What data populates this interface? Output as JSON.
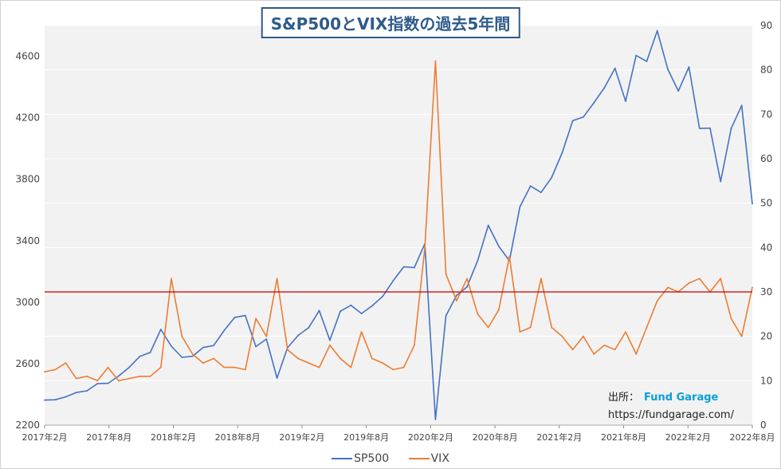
{
  "title": "S&P500とVIX指数の過去5年間",
  "source": {
    "label": "出所：",
    "name": "Fund Garage",
    "url": "https://fundgarage.com/"
  },
  "colors": {
    "sp500": "#4472c4",
    "vix": "#ed7d31",
    "threshold": "#c00000",
    "plot_bg": "#f2f2f2",
    "grid": "#ffffff"
  },
  "chart_data": {
    "type": "line",
    "title": "S&P500とVIX指数の過去5年間",
    "x_tick_labels": [
      "2017年2月",
      "2017年8月",
      "2018年2月",
      "2018年8月",
      "2019年2月",
      "2019年8月",
      "2020年2月",
      "2020年8月",
      "2021年2月",
      "2021年8月",
      "2022年2月",
      "2022年8月"
    ],
    "x_range": [
      "2017-02",
      "2022-09"
    ],
    "y_left": {
      "ticks": [
        2200,
        2600,
        3000,
        3400,
        3800,
        4200,
        4600
      ],
      "range": [
        2200,
        4800
      ]
    },
    "y_right": {
      "ticks": [
        0,
        10,
        20,
        30,
        40,
        50,
        60,
        70,
        80,
        90
      ],
      "range": [
        0,
        90
      ]
    },
    "grid": true,
    "legend": "bottom",
    "threshold_line": {
      "axis": "right",
      "value": 30
    },
    "series": [
      {
        "name": "SP500",
        "axis": "left",
        "points": [
          [
            "2017-02",
            2363
          ],
          [
            "2017-03",
            2365
          ],
          [
            "2017-04",
            2384
          ],
          [
            "2017-05",
            2412
          ],
          [
            "2017-06",
            2423
          ],
          [
            "2017-07",
            2470
          ],
          [
            "2017-08",
            2472
          ],
          [
            "2017-09",
            2519
          ],
          [
            "2017-10",
            2575
          ],
          [
            "2017-11",
            2647
          ],
          [
            "2017-12",
            2673
          ],
          [
            "2018-01",
            2823
          ],
          [
            "2018-02",
            2714
          ],
          [
            "2018-03",
            2641
          ],
          [
            "2018-04",
            2648
          ],
          [
            "2018-05",
            2705
          ],
          [
            "2018-06",
            2718
          ],
          [
            "2018-07",
            2816
          ],
          [
            "2018-08",
            2901
          ],
          [
            "2018-09",
            2913
          ],
          [
            "2018-10",
            2711
          ],
          [
            "2018-11",
            2760
          ],
          [
            "2018-12",
            2506
          ],
          [
            "2019-01",
            2704
          ],
          [
            "2019-02",
            2784
          ],
          [
            "2019-03",
            2834
          ],
          [
            "2019-04",
            2945
          ],
          [
            "2019-05",
            2752
          ],
          [
            "2019-06",
            2941
          ],
          [
            "2019-07",
            2980
          ],
          [
            "2019-08",
            2926
          ],
          [
            "2019-09",
            2976
          ],
          [
            "2019-10",
            3037
          ],
          [
            "2019-11",
            3140
          ],
          [
            "2019-12",
            3230
          ],
          [
            "2020-01",
            3225
          ],
          [
            "2020-02",
            3380
          ],
          [
            "2020-03",
            2237
          ],
          [
            "2020-04",
            2912
          ],
          [
            "2020-05",
            3044
          ],
          [
            "2020-06",
            3100
          ],
          [
            "2020-07",
            3271
          ],
          [
            "2020-08",
            3500
          ],
          [
            "2020-09",
            3363
          ],
          [
            "2020-10",
            3270
          ],
          [
            "2020-11",
            3621
          ],
          [
            "2020-12",
            3756
          ],
          [
            "2021-01",
            3714
          ],
          [
            "2021-02",
            3811
          ],
          [
            "2021-03",
            3972
          ],
          [
            "2021-04",
            4181
          ],
          [
            "2021-05",
            4204
          ],
          [
            "2021-06",
            4297
          ],
          [
            "2021-07",
            4395
          ],
          [
            "2021-08",
            4522
          ],
          [
            "2021-09",
            4307
          ],
          [
            "2021-10",
            4605
          ],
          [
            "2021-11",
            4567
          ],
          [
            "2021-12",
            4766
          ],
          [
            "2022-01",
            4515
          ],
          [
            "2022-02",
            4374
          ],
          [
            "2022-03",
            4530
          ],
          [
            "2022-04",
            4131
          ],
          [
            "2022-05",
            4132
          ],
          [
            "2022-06",
            3785
          ],
          [
            "2022-07",
            4130
          ],
          [
            "2022-08",
            4280
          ],
          [
            "2022-09",
            3640
          ]
        ]
      },
      {
        "name": "VIX",
        "axis": "right",
        "points": [
          [
            "2017-02",
            12
          ],
          [
            "2017-03",
            12.5
          ],
          [
            "2017-04",
            14
          ],
          [
            "2017-05",
            10.5
          ],
          [
            "2017-06",
            11
          ],
          [
            "2017-07",
            10
          ],
          [
            "2017-08",
            13
          ],
          [
            "2017-09",
            10
          ],
          [
            "2017-10",
            10.5
          ],
          [
            "2017-11",
            11
          ],
          [
            "2017-12",
            11
          ],
          [
            "2018-01",
            13
          ],
          [
            "2018-02",
            33
          ],
          [
            "2018-03",
            20
          ],
          [
            "2018-04",
            16
          ],
          [
            "2018-05",
            14
          ],
          [
            "2018-06",
            15
          ],
          [
            "2018-07",
            13
          ],
          [
            "2018-08",
            13
          ],
          [
            "2018-09",
            12.5
          ],
          [
            "2018-10",
            24
          ],
          [
            "2018-11",
            20
          ],
          [
            "2018-12",
            33
          ],
          [
            "2019-01",
            17
          ],
          [
            "2019-02",
            15
          ],
          [
            "2019-03",
            14
          ],
          [
            "2019-04",
            13
          ],
          [
            "2019-05",
            18
          ],
          [
            "2019-06",
            15
          ],
          [
            "2019-07",
            13
          ],
          [
            "2019-08",
            21
          ],
          [
            "2019-09",
            15
          ],
          [
            "2019-10",
            14
          ],
          [
            "2019-11",
            12.5
          ],
          [
            "2019-12",
            13
          ],
          [
            "2020-01",
            18
          ],
          [
            "2020-02",
            40
          ],
          [
            "2020-03",
            82
          ],
          [
            "2020-04",
            34
          ],
          [
            "2020-05",
            28
          ],
          [
            "2020-06",
            33
          ],
          [
            "2020-07",
            25
          ],
          [
            "2020-08",
            22
          ],
          [
            "2020-09",
            26
          ],
          [
            "2020-10",
            38
          ],
          [
            "2020-11",
            21
          ],
          [
            "2020-12",
            22
          ],
          [
            "2021-01",
            33
          ],
          [
            "2021-02",
            22
          ],
          [
            "2021-03",
            20
          ],
          [
            "2021-04",
            17
          ],
          [
            "2021-05",
            20
          ],
          [
            "2021-06",
            16
          ],
          [
            "2021-07",
            18
          ],
          [
            "2021-08",
            17
          ],
          [
            "2021-09",
            21
          ],
          [
            "2021-10",
            16
          ],
          [
            "2021-11",
            22
          ],
          [
            "2021-12",
            28
          ],
          [
            "2022-01",
            31
          ],
          [
            "2022-02",
            30
          ],
          [
            "2022-03",
            32
          ],
          [
            "2022-04",
            33
          ],
          [
            "2022-05",
            30
          ],
          [
            "2022-06",
            33
          ],
          [
            "2022-07",
            24
          ],
          [
            "2022-08",
            20
          ],
          [
            "2022-09",
            31
          ]
        ]
      }
    ]
  }
}
